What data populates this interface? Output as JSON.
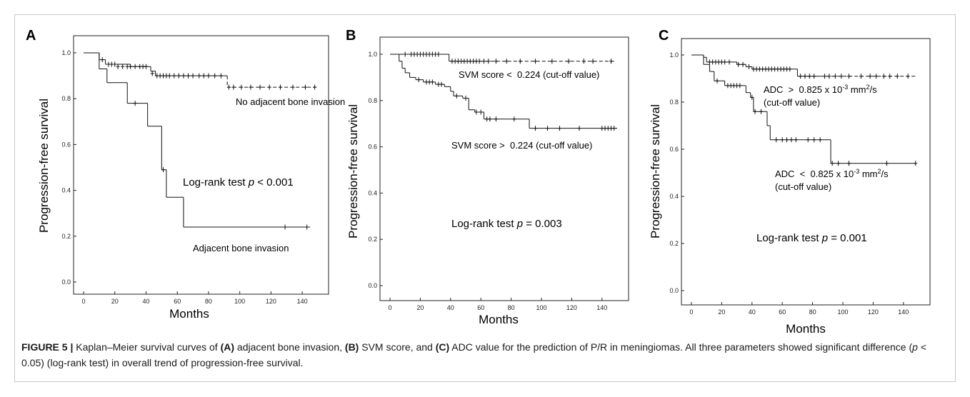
{
  "figure": {
    "panel_letters": [
      "A",
      "B",
      "C"
    ]
  },
  "caption": {
    "label": "FIGURE 5 |",
    "t1": " Kaplan–Meier survival curves of ",
    "b1": "(A)",
    "t2": " adjacent bone invasion, ",
    "b2": "(B)",
    "t3": " SVM score, and ",
    "b3": "(C)",
    "t4": " ADC value for the prediction of P/R in meningiomas. All three parameters showed significant difference (",
    "italic_p": "p",
    "t5": " < 0.05) (log-rank test) in overall trend of progression-free survival."
  },
  "chart_data": [
    {
      "type": "line",
      "panel": "A",
      "xlabel": "Months",
      "ylabel": "Progression-free survival",
      "xlim": [
        0,
        150
      ],
      "ylim": [
        0,
        1.0
      ],
      "xticks": [
        "0",
        "20",
        "40",
        "60",
        "80",
        "100",
        "120",
        "140"
      ],
      "yticks": [
        "0.0",
        "0.2",
        "0.4",
        "0.6",
        "0.8",
        "1.0"
      ],
      "annotation": {
        "prefix": "Log-rank test ",
        "p": "p",
        "suffix": " < 0.001"
      },
      "series": [
        {
          "name": "No adjacent bone invasion",
          "style": "solid-then-dashed",
          "dash_after_x": 90,
          "steps": [
            [
              0,
              1.0
            ],
            [
              10,
              0.97
            ],
            [
              14,
              0.95
            ],
            [
              30,
              0.94
            ],
            [
              43,
              0.92
            ],
            [
              46,
              0.9
            ],
            [
              92,
              0.85
            ],
            [
              150,
              0.85
            ]
          ],
          "censored": [
            [
              12,
              0.97
            ],
            [
              16,
              0.95
            ],
            [
              18,
              0.95
            ],
            [
              20,
              0.95
            ],
            [
              22,
              0.94
            ],
            [
              25,
              0.94
            ],
            [
              28,
              0.94
            ],
            [
              30,
              0.94
            ],
            [
              33,
              0.94
            ],
            [
              36,
              0.94
            ],
            [
              38,
              0.94
            ],
            [
              40,
              0.94
            ],
            [
              44,
              0.91
            ],
            [
              47,
              0.9
            ],
            [
              49,
              0.9
            ],
            [
              51,
              0.9
            ],
            [
              53,
              0.9
            ],
            [
              55,
              0.9
            ],
            [
              58,
              0.9
            ],
            [
              61,
              0.9
            ],
            [
              64,
              0.9
            ],
            [
              67,
              0.9
            ],
            [
              70,
              0.9
            ],
            [
              74,
              0.9
            ],
            [
              77,
              0.9
            ],
            [
              80,
              0.9
            ],
            [
              84,
              0.9
            ],
            [
              88,
              0.9
            ],
            [
              93,
              0.85
            ],
            [
              96,
              0.85
            ],
            [
              101,
              0.85
            ],
            [
              107,
              0.85
            ],
            [
              113,
              0.85
            ],
            [
              119,
              0.85
            ],
            [
              126,
              0.85
            ],
            [
              134,
              0.85
            ],
            [
              142,
              0.85
            ],
            [
              148,
              0.85
            ]
          ]
        },
        {
          "name": "Adjacent bone invasion",
          "style": "solid",
          "steps": [
            [
              0,
              1.0
            ],
            [
              10,
              0.93
            ],
            [
              15,
              0.87
            ],
            [
              28,
              0.78
            ],
            [
              41,
              0.68
            ],
            [
              50,
              0.49
            ],
            [
              53,
              0.37
            ],
            [
              64,
              0.24
            ],
            [
              145,
              0.24
            ]
          ],
          "censored": [
            [
              33,
              0.78
            ],
            [
              51,
              0.49
            ],
            [
              129,
              0.24
            ],
            [
              143,
              0.24
            ]
          ]
        }
      ],
      "labels": [
        "No adjacent bone invasion",
        "Adjacent bone invasion"
      ]
    },
    {
      "type": "line",
      "panel": "B",
      "xlabel": "Months",
      "ylabel": "Progression-free survival",
      "xlim": [
        0,
        150
      ],
      "ylim": [
        0,
        1.0
      ],
      "xticks": [
        "0",
        "20",
        "40",
        "60",
        "80",
        "100",
        "120",
        "140"
      ],
      "yticks": [
        "0.0",
        "0.2",
        "0.4",
        "0.6",
        "0.8",
        "1.0"
      ],
      "annotation": {
        "prefix": "Log-rank test ",
        "p": "p",
        "suffix": " = 0.003"
      },
      "series": [
        {
          "name": "SVM score < 0.224 (cut-off value)",
          "style": "solid-then-dashed",
          "dash_after_x": 40,
          "steps": [
            [
              0,
              1.0
            ],
            [
              38,
              1.0
            ],
            [
              39,
              0.97
            ],
            [
              148,
              0.97
            ]
          ],
          "censored": [
            [
              10,
              1.0
            ],
            [
              14,
              1.0
            ],
            [
              16,
              1.0
            ],
            [
              18,
              1.0
            ],
            [
              20,
              1.0
            ],
            [
              22,
              1.0
            ],
            [
              24,
              1.0
            ],
            [
              26,
              1.0
            ],
            [
              28,
              1.0
            ],
            [
              30,
              1.0
            ],
            [
              32,
              1.0
            ],
            [
              41,
              0.97
            ],
            [
              43,
              0.97
            ],
            [
              45,
              0.97
            ],
            [
              47,
              0.97
            ],
            [
              49,
              0.97
            ],
            [
              51,
              0.97
            ],
            [
              53,
              0.97
            ],
            [
              55,
              0.97
            ],
            [
              57,
              0.97
            ],
            [
              59,
              0.97
            ],
            [
              62,
              0.97
            ],
            [
              65,
              0.97
            ],
            [
              70,
              0.97
            ],
            [
              77,
              0.97
            ],
            [
              86,
              0.97
            ],
            [
              96,
              0.97
            ],
            [
              107,
              0.97
            ],
            [
              118,
              0.97
            ],
            [
              128,
              0.97
            ],
            [
              134,
              0.97
            ],
            [
              146,
              0.97
            ]
          ]
        },
        {
          "name": "SVM score > 0.224 (cut-off value)",
          "style": "solid",
          "steps": [
            [
              0,
              1.0
            ],
            [
              6,
              0.97
            ],
            [
              8,
              0.94
            ],
            [
              10,
              0.92
            ],
            [
              13,
              0.9
            ],
            [
              17,
              0.89
            ],
            [
              22,
              0.88
            ],
            [
              30,
              0.87
            ],
            [
              36,
              0.86
            ],
            [
              40,
              0.84
            ],
            [
              42,
              0.82
            ],
            [
              48,
              0.81
            ],
            [
              52,
              0.76
            ],
            [
              56,
              0.75
            ],
            [
              62,
              0.72
            ],
            [
              92,
              0.68
            ],
            [
              150,
              0.68
            ]
          ],
          "censored": [
            [
              19,
              0.89
            ],
            [
              24,
              0.88
            ],
            [
              26,
              0.88
            ],
            [
              28,
              0.88
            ],
            [
              32,
              0.87
            ],
            [
              34,
              0.87
            ],
            [
              44,
              0.82
            ],
            [
              50,
              0.81
            ],
            [
              57,
              0.75
            ],
            [
              60,
              0.75
            ],
            [
              64,
              0.72
            ],
            [
              66,
              0.72
            ],
            [
              70,
              0.72
            ],
            [
              82,
              0.72
            ],
            [
              96,
              0.68
            ],
            [
              104,
              0.68
            ],
            [
              112,
              0.68
            ],
            [
              125,
              0.68
            ],
            [
              140,
              0.68
            ],
            [
              142,
              0.68
            ],
            [
              144,
              0.68
            ],
            [
              146,
              0.68
            ],
            [
              148,
              0.68
            ]
          ]
        }
      ],
      "labels": [
        "SVM score <  0.224 (cut-off value)",
        "SVM score >  0.224 (cut-off value)"
      ]
    },
    {
      "type": "line",
      "panel": "C",
      "xlabel": "Months",
      "ylabel": "Progression-free survival",
      "xlim": [
        0,
        150
      ],
      "ylim": [
        0,
        1.0
      ],
      "xticks": [
        "0",
        "20",
        "40",
        "60",
        "80",
        "100",
        "120",
        "140"
      ],
      "yticks": [
        "0.0",
        "0.2",
        "0.4",
        "0.6",
        "0.8",
        "1.0"
      ],
      "annotation": {
        "prefix": "Log-rank test ",
        "p": "p",
        "suffix": " = 0.001"
      },
      "series": [
        {
          "name": "ADC > 0.825 x 10-3 mm2/s (cut-off value)",
          "style": "solid-then-dashed",
          "dash_after_x": 85,
          "steps": [
            [
              0,
              1.0
            ],
            [
              8,
              0.99
            ],
            [
              10,
              0.97
            ],
            [
              30,
              0.96
            ],
            [
              36,
              0.95
            ],
            [
              40,
              0.94
            ],
            [
              70,
              0.91
            ],
            [
              148,
              0.91
            ]
          ],
          "censored": [
            [
              12,
              0.97
            ],
            [
              14,
              0.97
            ],
            [
              16,
              0.97
            ],
            [
              18,
              0.97
            ],
            [
              20,
              0.97
            ],
            [
              22,
              0.97
            ],
            [
              25,
              0.97
            ],
            [
              31,
              0.96
            ],
            [
              34,
              0.96
            ],
            [
              38,
              0.95
            ],
            [
              41,
              0.94
            ],
            [
              43,
              0.94
            ],
            [
              45,
              0.94
            ],
            [
              47,
              0.94
            ],
            [
              49,
              0.94
            ],
            [
              51,
              0.94
            ],
            [
              53,
              0.94
            ],
            [
              55,
              0.94
            ],
            [
              57,
              0.94
            ],
            [
              59,
              0.94
            ],
            [
              61,
              0.94
            ],
            [
              63,
              0.94
            ],
            [
              65,
              0.94
            ],
            [
              72,
              0.91
            ],
            [
              75,
              0.91
            ],
            [
              78,
              0.91
            ],
            [
              81,
              0.91
            ],
            [
              88,
              0.91
            ],
            [
              91,
              0.91
            ],
            [
              95,
              0.91
            ],
            [
              99,
              0.91
            ],
            [
              104,
              0.91
            ],
            [
              112,
              0.91
            ],
            [
              118,
              0.91
            ],
            [
              122,
              0.91
            ],
            [
              127,
              0.91
            ],
            [
              131,
              0.91
            ],
            [
              136,
              0.91
            ],
            [
              143,
              0.91
            ]
          ]
        },
        {
          "name": "ADC < 0.825 x 10-3 mm2/s (cut-off value)",
          "style": "solid",
          "steps": [
            [
              0,
              1.0
            ],
            [
              8,
              0.96
            ],
            [
              12,
              0.93
            ],
            [
              15,
              0.89
            ],
            [
              22,
              0.87
            ],
            [
              36,
              0.84
            ],
            [
              39,
              0.82
            ],
            [
              41,
              0.76
            ],
            [
              50,
              0.7
            ],
            [
              52,
              0.64
            ],
            [
              92,
              0.54
            ],
            [
              148,
              0.54
            ]
          ],
          "censored": [
            [
              17,
              0.89
            ],
            [
              24,
              0.87
            ],
            [
              26,
              0.87
            ],
            [
              28,
              0.87
            ],
            [
              30,
              0.87
            ],
            [
              32,
              0.87
            ],
            [
              40,
              0.82
            ],
            [
              42,
              0.76
            ],
            [
              46,
              0.76
            ],
            [
              56,
              0.64
            ],
            [
              60,
              0.64
            ],
            [
              63,
              0.64
            ],
            [
              66,
              0.64
            ],
            [
              69,
              0.64
            ],
            [
              77,
              0.64
            ],
            [
              81,
              0.64
            ],
            [
              85,
              0.64
            ],
            [
              93,
              0.54
            ],
            [
              97,
              0.54
            ],
            [
              104,
              0.54
            ],
            [
              129,
              0.54
            ],
            [
              148,
              0.54
            ]
          ]
        }
      ],
      "labels": [
        {
          "pre": "ADC  >  0.825 x 10",
          "sup": "-3",
          "mid": " mm",
          "sup2": "2",
          "post": "/s",
          "line2": "(cut-off value)"
        },
        {
          "pre": "ADC  <  0.825 x 10",
          "sup": "-3",
          "mid": " mm",
          "sup2": "2",
          "post": "/s",
          "line2": "(cut-off value)"
        }
      ]
    }
  ]
}
